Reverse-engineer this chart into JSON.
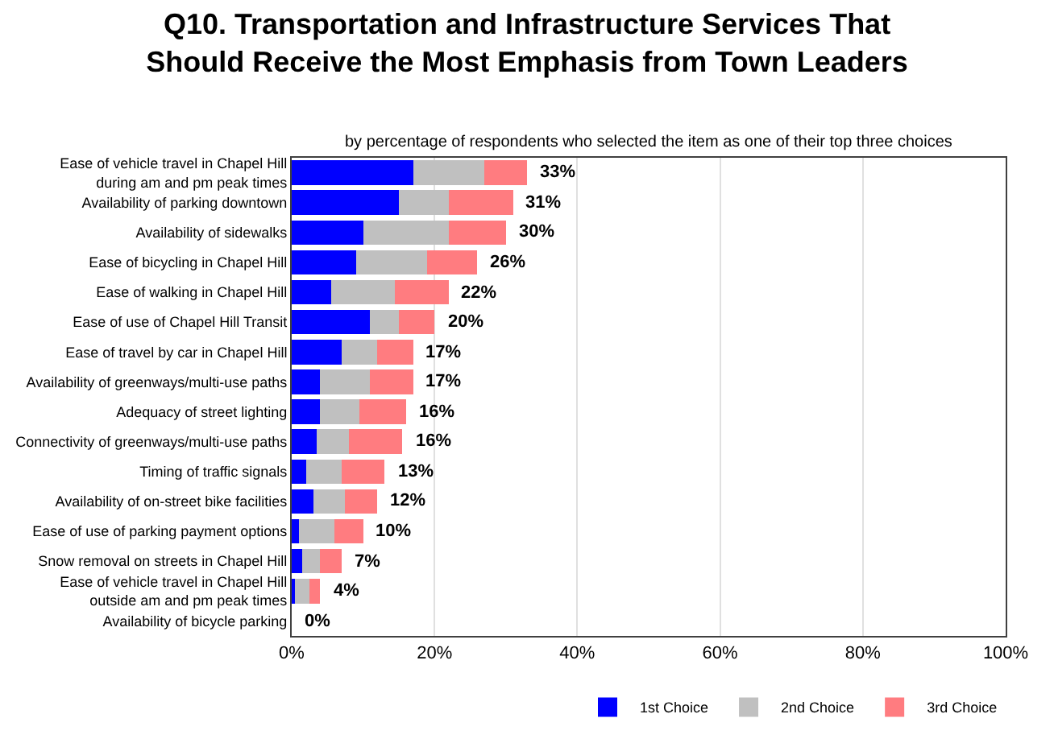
{
  "chart_data": {
    "type": "bar",
    "orientation": "horizontal",
    "stacked": true,
    "title": "Q10. Transportation and Infrastructure Services That\nShould Receive the Most Emphasis from Town Leaders",
    "subtitle": "by percentage of respondents who selected the item as one of their top three choices",
    "categories": [
      "Ease of vehicle travel in Chapel Hill\nduring am and pm peak times",
      "Availability of parking downtown",
      "Availability of sidewalks",
      "Ease of bicycling in Chapel Hill",
      "Ease of walking in Chapel Hill",
      "Ease of use of Chapel Hill Transit",
      "Ease of travel by car in Chapel Hill",
      "Availability of greenways/multi-use paths",
      "Adequacy of street lighting",
      "Connectivity of greenways/multi-use paths",
      "Timing of traffic signals",
      "Availability of on-street bike facilities",
      "Ease of use of parking payment options",
      "Snow removal on streets in Chapel Hill",
      "Ease of vehicle travel in Chapel Hill\noutside am and pm peak times",
      "Availability of bicycle parking"
    ],
    "series": [
      {
        "name": "1st Choice",
        "color": "#0000ff",
        "values": [
          17,
          15,
          10,
          9,
          5.5,
          11,
          7,
          4,
          4,
          3.5,
          2,
          3,
          1,
          1.5,
          0.5,
          0
        ]
      },
      {
        "name": "2nd Choice",
        "color": "#c0c0c0",
        "values": [
          10,
          7,
          12,
          10,
          9,
          4,
          5,
          7,
          5.5,
          4.5,
          5,
          4.5,
          5,
          2.5,
          2,
          0
        ]
      },
      {
        "name": "3rd Choice",
        "color": "#ff7c80",
        "values": [
          6,
          9,
          8,
          7,
          7.5,
          5,
          5,
          6,
          6.5,
          7.5,
          6,
          4.5,
          4,
          3,
          1.5,
          0
        ]
      }
    ],
    "totals": [
      "33%",
      "31%",
      "30%",
      "26%",
      "22%",
      "20%",
      "17%",
      "17%",
      "16%",
      "16%",
      "13%",
      "12%",
      "10%",
      "7%",
      "4%",
      "0%"
    ],
    "xlim": [
      0,
      100
    ],
    "xticks": [
      {
        "value": 0,
        "label": "0%"
      },
      {
        "value": 20,
        "label": "20%"
      },
      {
        "value": 40,
        "label": "40%"
      },
      {
        "value": 60,
        "label": "60%"
      },
      {
        "value": 80,
        "label": "80%"
      },
      {
        "value": 100,
        "label": "100%"
      }
    ],
    "grid": "x",
    "legend": "bottom right"
  }
}
